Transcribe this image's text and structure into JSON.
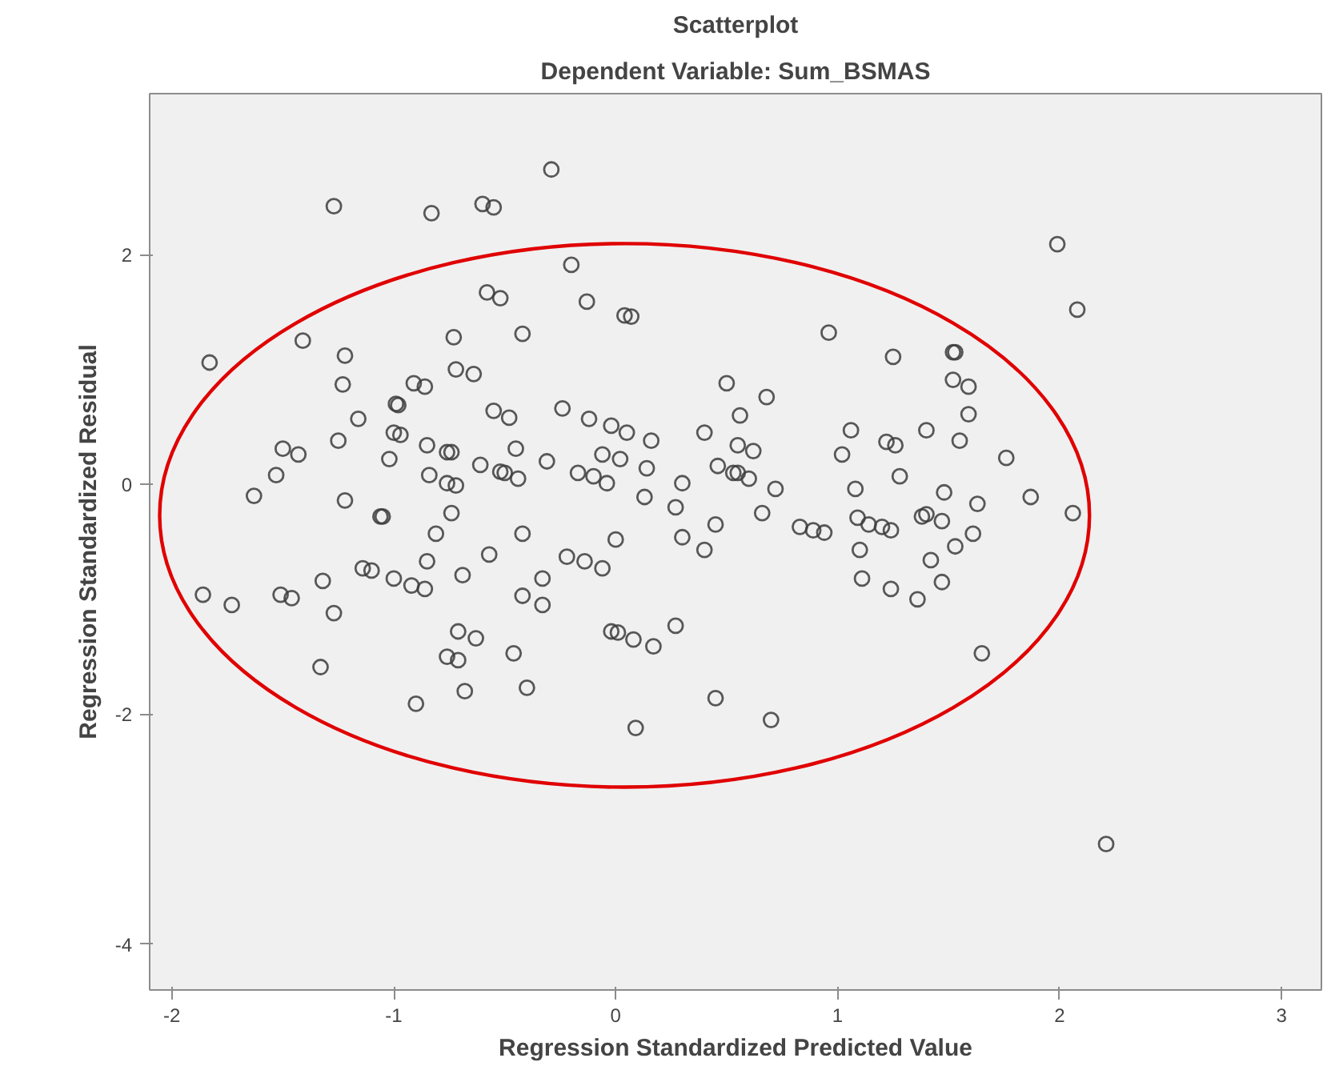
{
  "chart_data": {
    "type": "scatter",
    "title": "Scatterplot",
    "subtitle": "Dependent Variable: Sum_BSMAS",
    "xlabel": "Regression Standardized Predicted Value",
    "ylabel": "Regression Standardized Residual",
    "marker": "circle",
    "grid": false,
    "xlim": [
      -2.1,
      3.18
    ],
    "ylim": [
      -4.4,
      3.4
    ],
    "xticks": [
      -2,
      -1,
      0,
      1,
      2,
      3
    ],
    "yticks": [
      -4,
      -2,
      0,
      2
    ],
    "series": [
      {
        "color": "#3c3c3c",
        "x": [
          -1.27,
          -0.83,
          -0.6,
          -0.55,
          -0.29,
          1.99,
          2.08,
          -0.58,
          -0.52,
          -1.41,
          -1.83,
          -1.22,
          -0.73,
          -0.42,
          -1.23,
          -0.72,
          -0.64,
          -0.91,
          -0.86,
          -0.99,
          -0.98,
          -1.16,
          -0.55,
          -0.48,
          -1.25,
          -1.0,
          -0.97,
          -0.85,
          -0.76,
          -0.74,
          -0.45,
          -1.5,
          -1.43,
          -1.53,
          -1.02,
          -0.61,
          -0.84,
          -0.76,
          -0.72,
          -0.52,
          -0.5,
          -0.44,
          -1.63,
          -1.22,
          -1.06,
          -1.05,
          -0.74,
          -0.81,
          -0.42,
          -0.2,
          -0.13,
          0.04,
          0.07,
          0.96,
          1.25,
          0.5,
          0.68,
          -0.24,
          -0.12,
          -0.02,
          0.05,
          0.16,
          0.4,
          0.56,
          0.55,
          0.62,
          1.06,
          1.02,
          1.22,
          1.26,
          1.4,
          -0.31,
          -0.06,
          0.02,
          -0.17,
          -0.1,
          -0.04,
          0.14,
          0.46,
          0.53,
          0.55,
          0.6,
          0.3,
          0.72,
          1.08,
          1.28,
          0.13,
          0.27,
          0.45,
          0.66,
          0.83,
          0.89,
          0.94,
          1.09,
          1.14,
          1.2,
          1.24,
          1.38,
          0.0,
          0.3,
          1.52,
          1.53,
          1.52,
          1.59,
          1.59,
          1.55,
          1.76,
          1.48,
          1.63,
          1.87,
          2.06,
          1.4,
          1.47,
          -0.85,
          -0.57,
          -0.33,
          -1.32,
          -1.14,
          -1.1,
          -1.0,
          -0.92,
          -0.86,
          -0.69,
          -1.86,
          -1.73,
          -1.51,
          -1.46,
          -1.27,
          -0.42,
          -0.33,
          -0.71,
          -0.63,
          -0.46,
          -0.76,
          -0.71,
          -1.33,
          -0.68,
          -0.4,
          -0.9,
          -0.22,
          -0.14,
          -0.06,
          0.4,
          1.1,
          1.11,
          1.24,
          1.36,
          -0.02,
          0.01,
          0.08,
          0.17,
          0.27,
          0.45,
          0.09,
          0.7,
          2.21,
          1.53,
          1.42,
          1.61,
          1.47,
          1.65
        ],
        "values": [
          2.42,
          2.36,
          2.44,
          2.41,
          2.74,
          2.09,
          1.52,
          1.67,
          1.62,
          1.25,
          1.06,
          1.12,
          1.28,
          1.31,
          0.87,
          1.0,
          0.96,
          0.88,
          0.85,
          0.7,
          0.69,
          0.57,
          0.64,
          0.58,
          0.38,
          0.45,
          0.43,
          0.34,
          0.28,
          0.28,
          0.31,
          0.31,
          0.26,
          0.08,
          0.22,
          0.17,
          0.08,
          0.01,
          -0.01,
          0.11,
          0.1,
          0.05,
          -0.1,
          -0.14,
          -0.28,
          -0.28,
          -0.25,
          -0.43,
          -0.43,
          1.91,
          1.59,
          1.47,
          1.46,
          1.32,
          1.11,
          0.88,
          0.76,
          0.66,
          0.57,
          0.51,
          0.45,
          0.38,
          0.45,
          0.6,
          0.34,
          0.29,
          0.47,
          0.26,
          0.37,
          0.34,
          0.47,
          0.2,
          0.26,
          0.22,
          0.1,
          0.07,
          0.01,
          0.14,
          0.16,
          0.1,
          0.1,
          0.05,
          0.01,
          -0.04,
          -0.04,
          0.07,
          -0.11,
          -0.2,
          -0.35,
          -0.25,
          -0.37,
          -0.4,
          -0.42,
          -0.29,
          -0.35,
          -0.37,
          -0.4,
          -0.28,
          -0.48,
          -0.46,
          1.15,
          1.15,
          0.91,
          0.85,
          0.61,
          0.38,
          0.23,
          -0.07,
          -0.17,
          -0.11,
          -0.25,
          -0.26,
          -0.32,
          -0.67,
          -0.61,
          -0.82,
          -0.84,
          -0.73,
          -0.75,
          -0.82,
          -0.88,
          -0.91,
          -0.79,
          -0.96,
          -1.05,
          -0.96,
          -0.99,
          -1.12,
          -0.97,
          -1.05,
          -1.28,
          -1.34,
          -1.47,
          -1.5,
          -1.53,
          -1.59,
          -1.8,
          -1.77,
          -1.91,
          -0.63,
          -0.67,
          -0.73,
          -0.57,
          -0.57,
          -0.82,
          -0.91,
          -1.0,
          -1.28,
          -1.29,
          -1.35,
          -1.41,
          -1.23,
          -1.86,
          -2.12,
          -2.05,
          -3.13,
          -0.54,
          -0.66,
          -0.43,
          -0.85,
          -1.47
        ]
      }
    ]
  }
}
